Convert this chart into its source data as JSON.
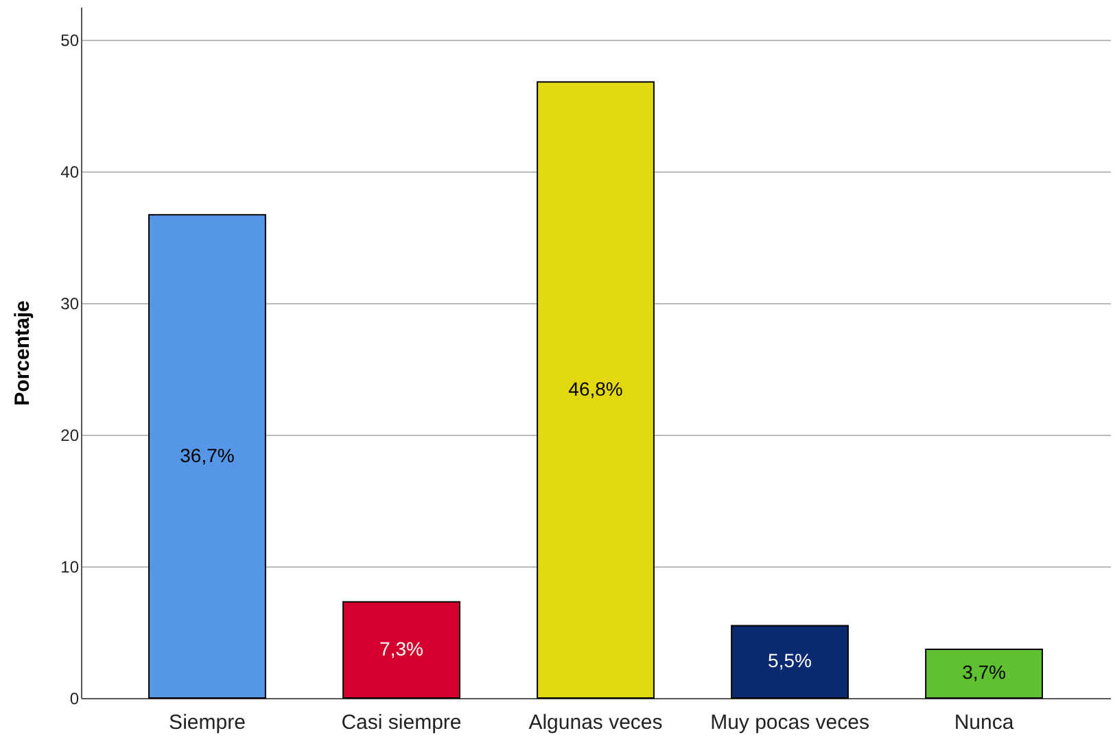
{
  "chart_data": {
    "type": "bar",
    "ylabel": "Porcentaje",
    "categories": [
      "Siempre",
      "Casi siempre",
      "Algunas veces",
      "Muy pocas veces",
      "Nunca"
    ],
    "values": [
      36.7,
      7.3,
      46.8,
      5.5,
      3.7
    ],
    "colors": [
      "#5596e6",
      "#d3002e",
      "#e2d810",
      "#0a2a72",
      "#5fc030"
    ],
    "value_labels": [
      "36,7%",
      "7,3%",
      "46,8%",
      "5,5%",
      "3,7%"
    ],
    "ylim": [
      0,
      52.5
    ],
    "yticks": [
      0,
      10,
      20,
      30,
      40,
      50
    ],
    "grid": "y"
  }
}
